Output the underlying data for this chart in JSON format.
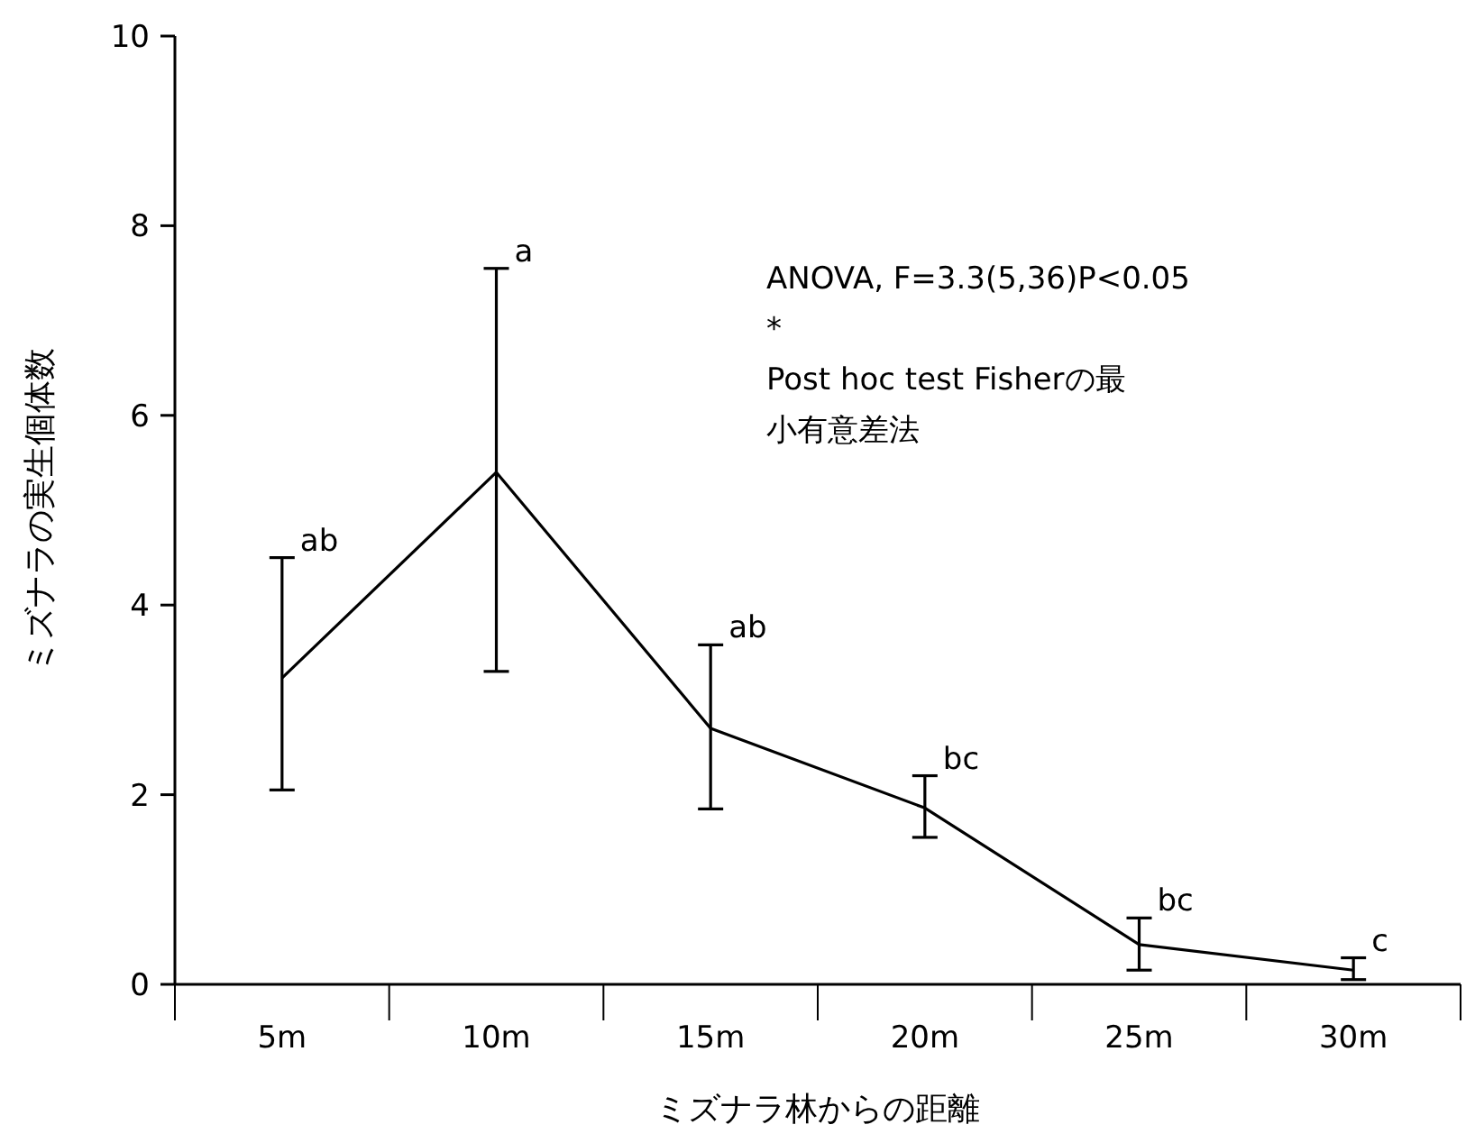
{
  "chart_data": {
    "type": "line",
    "xlabel": "ミズナラ林からの距離",
    "ylabel": "ミズナラの実生個体数",
    "categories": [
      "5m",
      "10m",
      "15m",
      "20m",
      "25m",
      "30m"
    ],
    "series": [
      {
        "color": "#000000",
        "values": [
          3.23,
          5.4,
          2.7,
          1.86,
          0.42,
          0.15
        ],
        "errors": [
          [
            2.05,
            4.5
          ],
          [
            3.3,
            7.55
          ],
          [
            1.85,
            3.58
          ],
          [
            1.55,
            2.2
          ],
          [
            0.15,
            0.7
          ],
          [
            0.05,
            0.28
          ]
        ]
      }
    ],
    "ylim": [
      0,
      10
    ],
    "yticks": [
      0,
      2,
      4,
      6,
      8,
      10
    ],
    "grid": false,
    "marker": "none",
    "line_style": "solid",
    "annotations": [
      "ab",
      "a",
      "ab",
      "bc",
      "bc",
      "c",
      "ANOVA, F=3.3(5,36)P<0.05*\nPost hoc test Fisherの最小有意差法"
    ]
  }
}
